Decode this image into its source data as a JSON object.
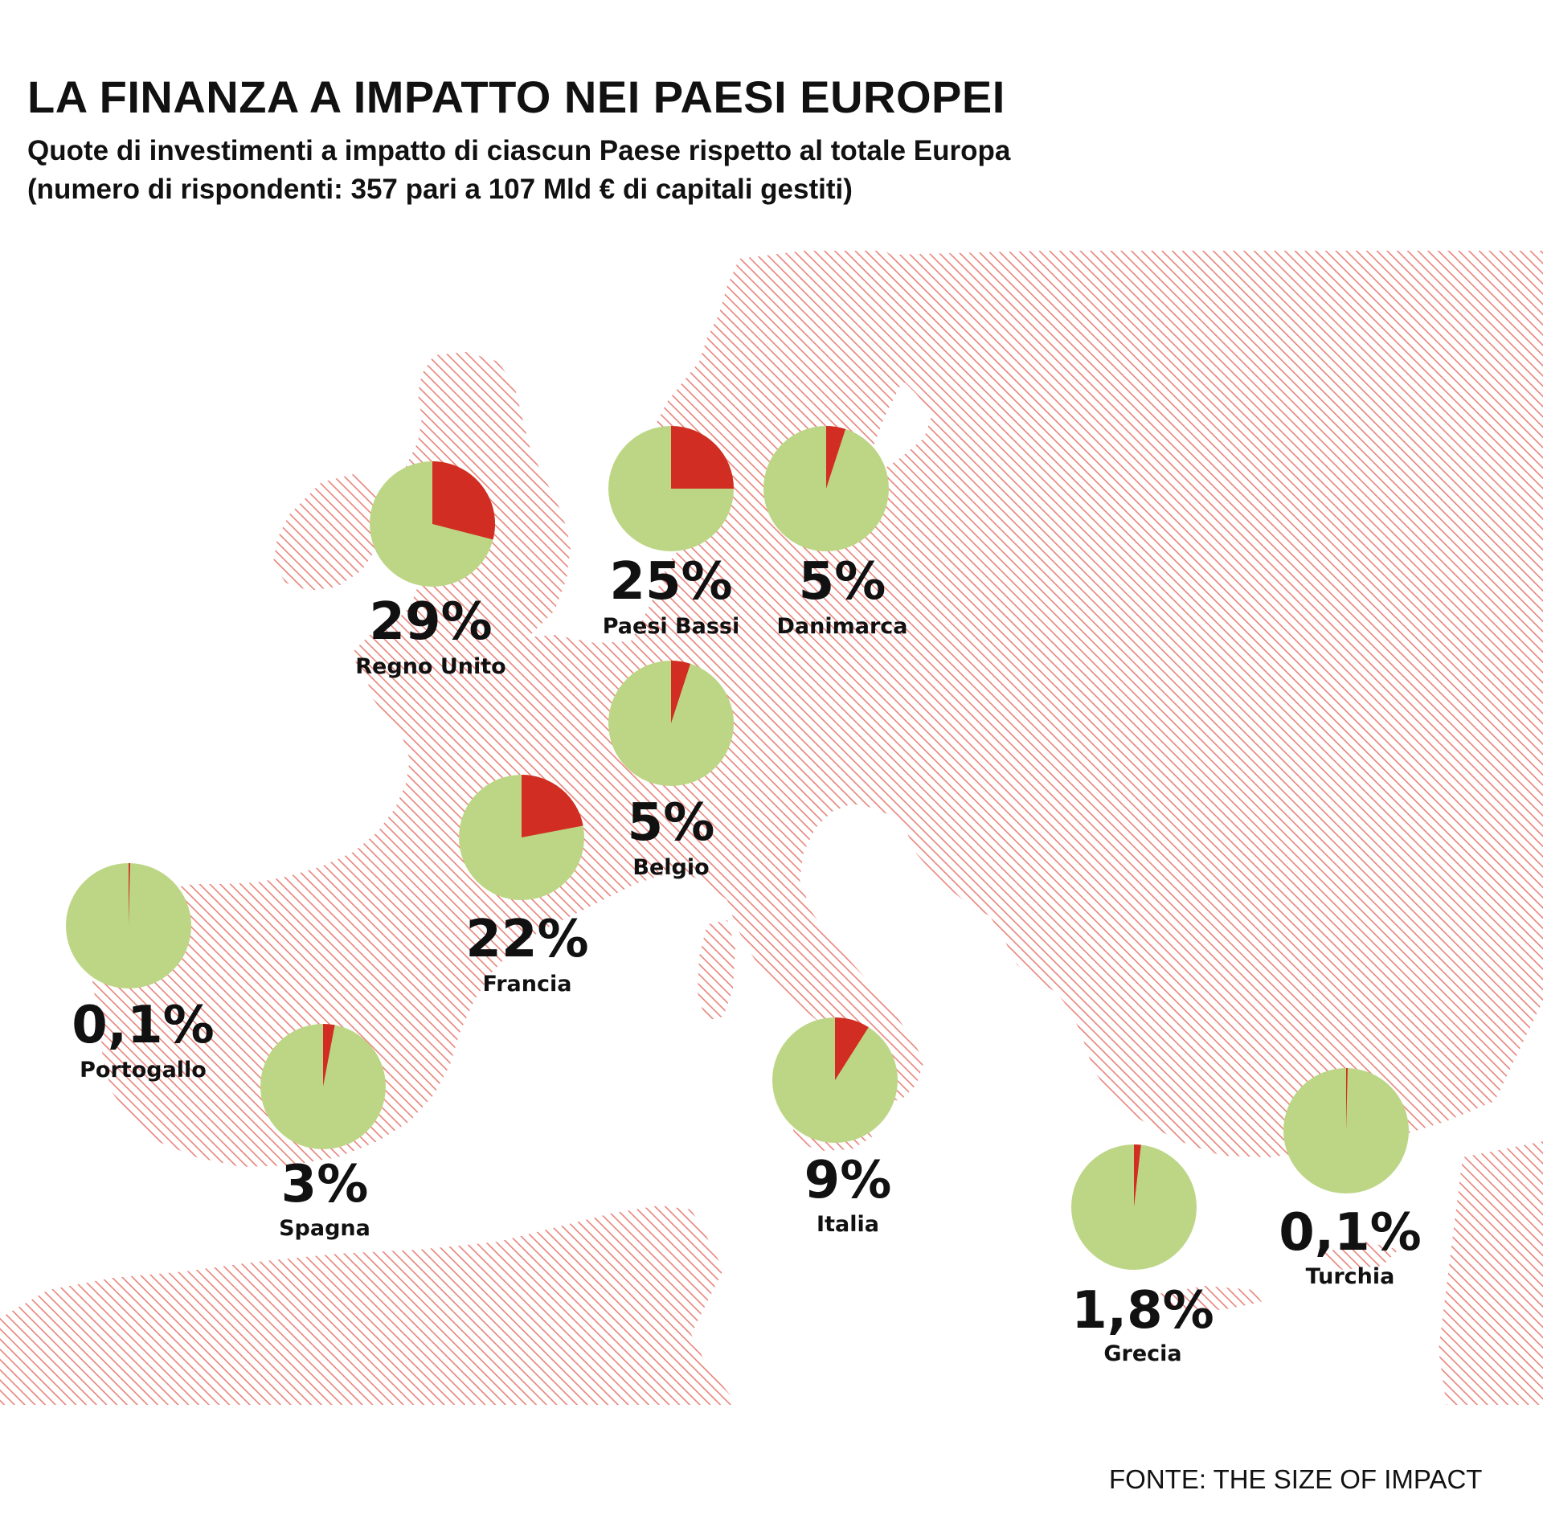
{
  "title": "LA FINANZA A IMPATTO NEI PAESI EUROPEI",
  "subtitle_line1": "Quote di investimenti a impatto di ciascun Paese rispetto al totale Europa",
  "subtitle_line2": "(numero di rispondenti: 357 pari a 107 Mld € di capitali gestiti)",
  "source": "FONTE: THE SIZE OF IMPACT",
  "colors": {
    "share": "#d22d22",
    "rest": "#bdd686",
    "map": "#e8837a"
  },
  "chart_data": {
    "type": "pie",
    "series": [
      {
        "country": "Regno Unito",
        "value": 29,
        "label": "29%"
      },
      {
        "country": "Paesi Bassi",
        "value": 25,
        "label": "25%"
      },
      {
        "country": "Danimarca",
        "value": 5,
        "label": "5%"
      },
      {
        "country": "Belgio",
        "value": 5,
        "label": "5%"
      },
      {
        "country": "Francia",
        "value": 22,
        "label": "22%"
      },
      {
        "country": "Portogallo",
        "value": 0.1,
        "label": "0,1%"
      },
      {
        "country": "Spagna",
        "value": 3,
        "label": "3%"
      },
      {
        "country": "Italia",
        "value": 9,
        "label": "9%"
      },
      {
        "country": "Grecia",
        "value": 1.8,
        "label": "1,8%"
      },
      {
        "country": "Turchia",
        "value": 0.1,
        "label": "0,1%"
      }
    ]
  }
}
